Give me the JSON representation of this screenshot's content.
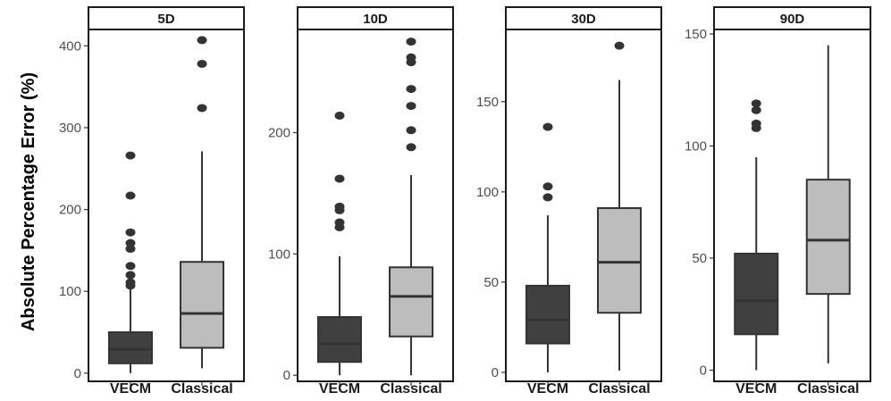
{
  "chart_data": {
    "type": "boxplot",
    "ylabel": "Absolute Percentage Error (%)",
    "categories": [
      "VECM",
      "Classical"
    ],
    "colors": {
      "VECM": "#404040",
      "Classical": "#bdbdbd",
      "outline": "#333333",
      "outlier": "#333333"
    },
    "panels": [
      {
        "title": "5D",
        "ylim": [
          -10,
          420
        ],
        "yticks": [
          0,
          100,
          200,
          300,
          400
        ],
        "boxes": [
          {
            "category": "VECM",
            "min": 0,
            "q1": 12,
            "median": 29,
            "q3": 50,
            "max": 103,
            "outliers": [
              107,
              111,
              120,
              131,
              152,
              159,
              172,
              217,
              266
            ]
          },
          {
            "category": "Classical",
            "min": 6,
            "q1": 31,
            "median": 73,
            "q3": 136,
            "max": 271,
            "outliers": [
              324,
              378,
              407
            ]
          }
        ]
      },
      {
        "title": "10D",
        "ylim": [
          -5,
          285
        ],
        "yticks": [
          0,
          100,
          200
        ],
        "boxes": [
          {
            "category": "VECM",
            "min": 0,
            "q1": 11,
            "median": 26,
            "q3": 48,
            "max": 98,
            "outliers": [
              122,
              126,
              136,
              139,
              162,
              214
            ]
          },
          {
            "category": "Classical",
            "min": 0,
            "q1": 32,
            "median": 65,
            "q3": 89,
            "max": 165,
            "outliers": [
              188,
              202,
              222,
              236,
              258,
              262,
              275
            ]
          }
        ]
      },
      {
        "title": "30D",
        "ylim": [
          -5,
          190
        ],
        "yticks": [
          0,
          50,
          100,
          150
        ],
        "boxes": [
          {
            "category": "VECM",
            "min": 0,
            "q1": 16,
            "median": 29,
            "q3": 48,
            "max": 87,
            "outliers": [
              97,
              103,
              136
            ]
          },
          {
            "category": "Classical",
            "min": 1,
            "q1": 33,
            "median": 61,
            "q3": 91,
            "max": 162,
            "outliers": [
              181
            ]
          }
        ]
      },
      {
        "title": "90D",
        "ylim": [
          -5,
          152
        ],
        "yticks": [
          0,
          50,
          100,
          150
        ],
        "boxes": [
          {
            "category": "VECM",
            "min": 0,
            "q1": 16,
            "median": 31,
            "q3": 52,
            "max": 95,
            "outliers": [
              108,
              110,
              116,
              119
            ]
          },
          {
            "category": "Classical",
            "min": 3,
            "q1": 34,
            "median": 58,
            "q3": 85,
            "max": 145,
            "outliers": []
          }
        ]
      }
    ]
  }
}
